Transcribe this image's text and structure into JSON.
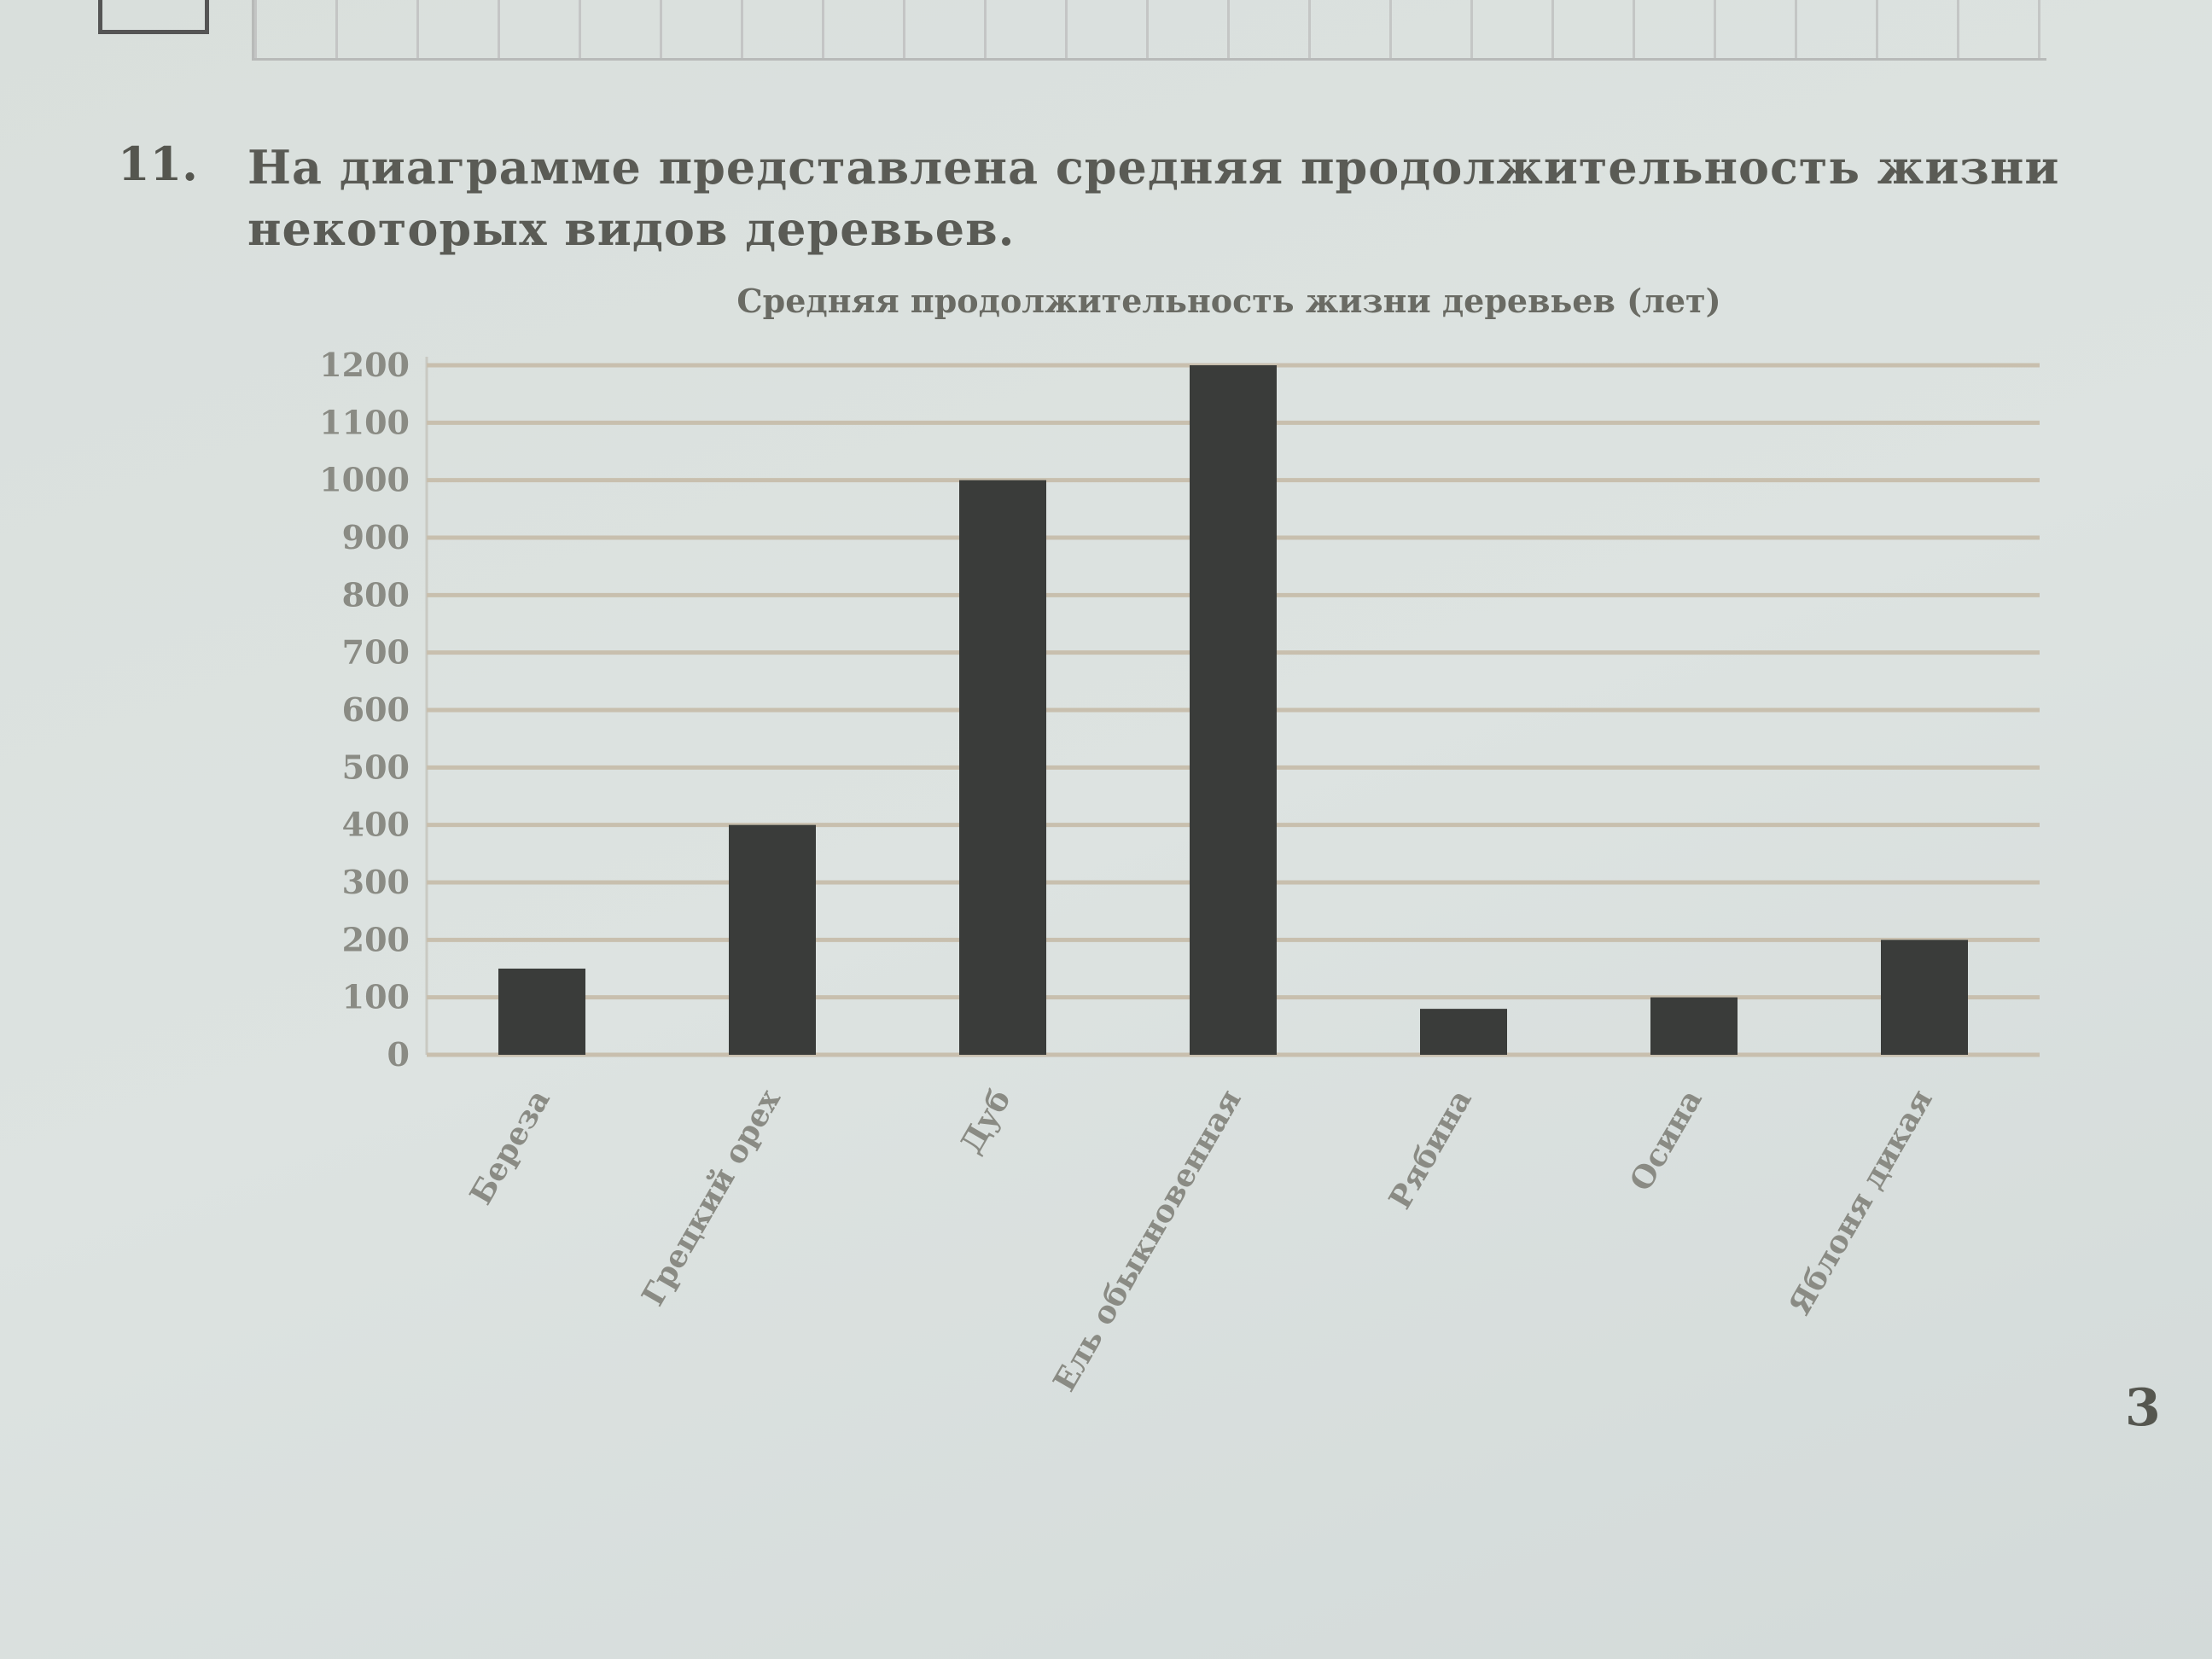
{
  "question": {
    "number": "11.",
    "text": "На диаграмме представлена средняя продолжительность жизни некоторых видов деревьев."
  },
  "page_number": "3",
  "chart_data": {
    "type": "bar",
    "title": "Средняя продолжительность жизни деревьев (лет)",
    "categories": [
      "Береза",
      "Грецкий орех",
      "Дуб",
      "Ель обыкновенная",
      "Рябина",
      "Осина",
      "Яблоня дикая"
    ],
    "values": [
      150,
      400,
      1000,
      1200,
      80,
      100,
      200
    ],
    "xlabel": "",
    "ylabel": "",
    "ylim": [
      0,
      1200
    ],
    "yticks": [
      0,
      100,
      200,
      300,
      400,
      500,
      600,
      700,
      800,
      900,
      1000,
      1100,
      1200
    ],
    "grid": true,
    "bar_color": "#3a3c3a",
    "grid_color": "#c8bfae"
  }
}
